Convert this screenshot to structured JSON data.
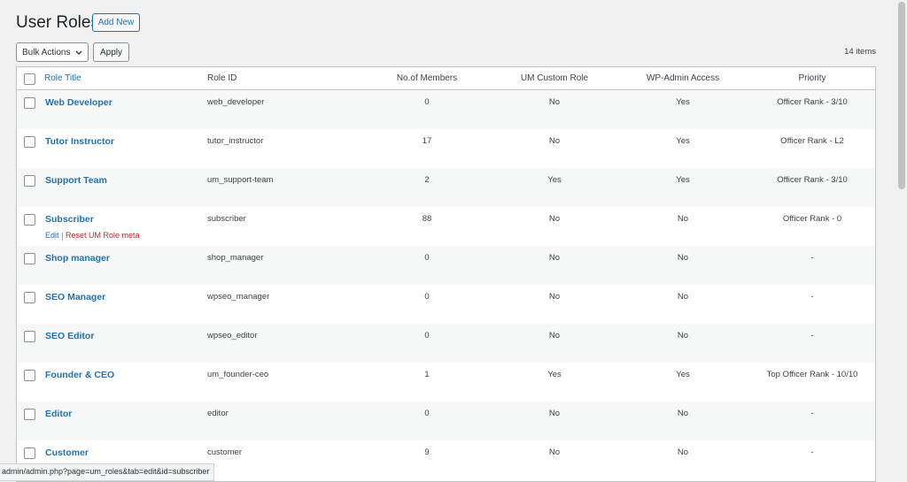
{
  "header": {
    "title": "User Roles",
    "add_new": "Add New"
  },
  "toolbar": {
    "bulk_actions": "Bulk Actions",
    "apply": "Apply",
    "count": "14 items"
  },
  "table": {
    "columns": [
      "Role Title",
      "Role ID",
      "No.of Members",
      "UM Custom Role",
      "WP-Admin Access",
      "Priority"
    ],
    "rows": [
      {
        "title": "Web Developer",
        "id": "web_developer",
        "members": 0,
        "custom": "No",
        "admin": "Yes",
        "priority": "Officer Rank - 3/10"
      },
      {
        "title": "Tutor Instructor",
        "id": "tutor_instructor",
        "members": 17,
        "custom": "No",
        "admin": "Yes",
        "priority": "Officer Rank - L2"
      },
      {
        "title": "Support Team",
        "id": "um_support-team",
        "members": 2,
        "custom": "Yes",
        "admin": "Yes",
        "priority": "Officer Rank - 3/10"
      },
      {
        "title": "Subscriber",
        "id": "subscriber",
        "members": 88,
        "custom": "No",
        "admin": "No",
        "priority": "Officer Rank - 0",
        "actions": [
          "Edit",
          "Reset UM Role meta"
        ]
      },
      {
        "title": "Shop manager",
        "id": "shop_manager",
        "members": 0,
        "custom": "No",
        "admin": "No",
        "priority": "-"
      },
      {
        "title": "SEO Manager",
        "id": "wpseo_manager",
        "members": 0,
        "custom": "No",
        "admin": "No",
        "priority": "-"
      },
      {
        "title": "SEO Editor",
        "id": "wpseo_editor",
        "members": 0,
        "custom": "No",
        "admin": "No",
        "priority": "-"
      },
      {
        "title": "Founder & CEO",
        "id": "um_founder-ceo",
        "members": 1,
        "custom": "Yes",
        "admin": "Yes",
        "priority": "Top Officer Rank - 10/10"
      },
      {
        "title": "Editor",
        "id": "editor",
        "members": 0,
        "custom": "No",
        "admin": "No",
        "priority": "-"
      },
      {
        "title": "Customer",
        "id": "customer",
        "members": 9,
        "custom": "No",
        "admin": "No",
        "priority": "-"
      }
    ]
  },
  "status_bar": {
    "url": "admin/admin.php?page=um_roles&tab=edit&id=subscriber"
  }
}
